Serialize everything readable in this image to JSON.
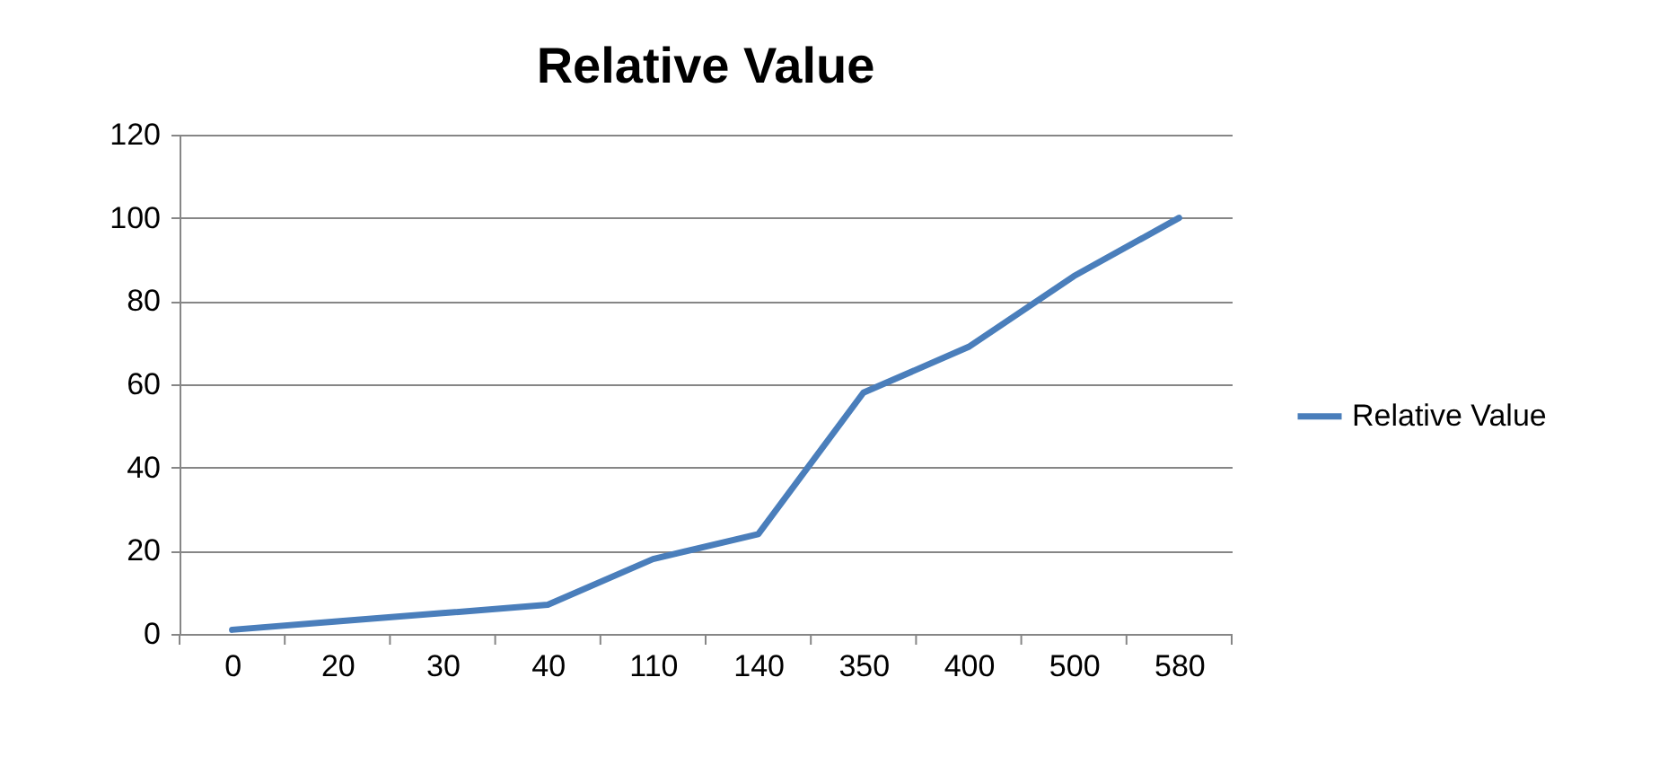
{
  "chart_data": {
    "type": "line",
    "title": "Relative Value",
    "categories": [
      "0",
      "20",
      "30",
      "40",
      "110",
      "140",
      "350",
      "400",
      "500",
      "580"
    ],
    "series": [
      {
        "name": "Relative Value",
        "color": "#4a7ebb",
        "values": [
          1,
          3,
          5,
          7,
          18,
          24,
          58,
          69,
          86,
          100
        ]
      }
    ],
    "ylim": [
      0,
      120
    ],
    "yticks": [
      0,
      20,
      40,
      60,
      80,
      100,
      120
    ],
    "grid": "y",
    "legend": "right",
    "marker": "none",
    "line_style": "solid"
  }
}
